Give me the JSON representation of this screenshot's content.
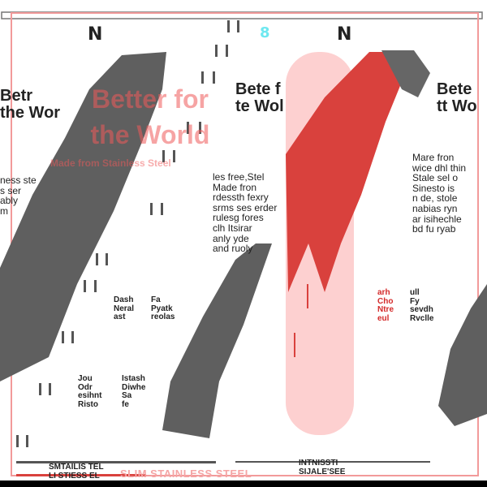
{
  "headline": {
    "line1": "Better for",
    "line2": "the World"
  },
  "subheadline": "Made from Stainless Steel",
  "bottom_label": "SLIM STAINLESS STEEL",
  "logos": [
    "N",
    "8",
    "N"
  ],
  "garbled_text": {
    "left_heading": "Betr\nthe Wor",
    "center_heading": "Bete f\nte Wol",
    "right_heading": "Bete\ntt Wo",
    "left_body": "ness ste\ns ser\nably\nm",
    "center_body": "les free,Stel\nMade fron\nrdessth fexry\nsrms ses erder\nrulesg fores\nclh Itsirar\nanly yde\nand ruoly",
    "right_body": "Mare fron\nwice dhl thin\nStale sel o\nSinesto is\nn de, stole\nnabias ryn\nar isihechle\nbd fu ryab",
    "feature_1": "Dash\nNeral\nast",
    "feature_2": "Fa\nPyatk\nreolas",
    "feature_3": "Jou\nOdr\nesihnt\nRisto",
    "feature_4": "Istash\nDiwhe\nSa\nfe",
    "feature_5": "arh\nCho\nNtre\neul",
    "feature_6": "ull\nFy\nsevdh\nRvclle",
    "bottom_left": "SMTAILIS TEL\nLI STIESS EL",
    "bottom_right": "INTNISSTI\nSIJALE'SEE"
  },
  "colors": {
    "accent": "#e0413e",
    "grey": "#5f5f5f",
    "pink": "#fdd0d0"
  }
}
